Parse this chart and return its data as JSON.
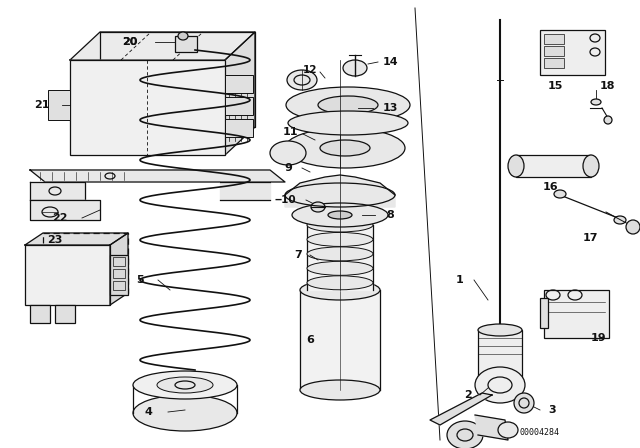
{
  "bg_color": "#ffffff",
  "line_color": "#111111",
  "diagram_code": "00004284",
  "figsize": [
    6.4,
    4.48
  ],
  "dpi": 100
}
